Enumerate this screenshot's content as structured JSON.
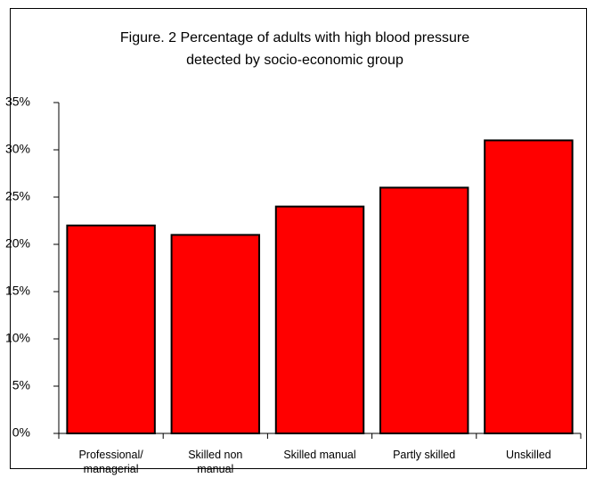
{
  "chart_data": {
    "type": "bar",
    "title": [
      "Figure. 2 Percentage of adults with high blood pressure",
      "detected by socio-economic group"
    ],
    "categories": [
      "Professional/ managerial",
      "Skilled non manual",
      "Skilled manual",
      "Partly skilled",
      "Unskilled"
    ],
    "values": [
      22,
      21,
      24,
      26,
      31
    ],
    "color": "#ff0000",
    "ylim": [
      0,
      35
    ],
    "yticks": [
      {
        "value": 0,
        "label": "0%"
      },
      {
        "value": 5,
        "label": "5%"
      },
      {
        "value": 10,
        "label": "10%"
      },
      {
        "value": 15,
        "label": "15%"
      },
      {
        "value": 20,
        "label": "20%"
      },
      {
        "value": 25,
        "label": "25%"
      },
      {
        "value": 30,
        "label": "30%"
      },
      {
        "value": 35,
        "label": "35%"
      }
    ],
    "grid": false
  }
}
